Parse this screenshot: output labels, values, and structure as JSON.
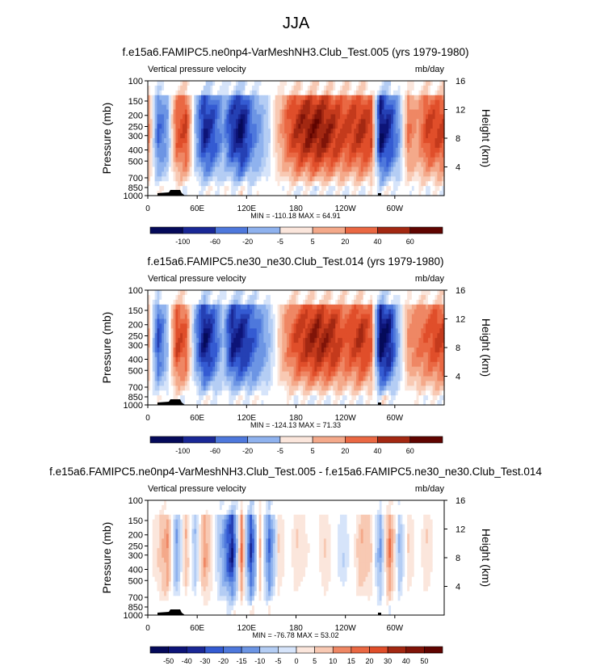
{
  "page_title": "JJA",
  "chart_data": [
    {
      "type": "heatmap",
      "title": "f.e15a6.FAMIPC5.ne0np4-VarMeshNH3.Club_Test.005 (yrs 1979-1980)",
      "left_label": "Vertical pressure velocity",
      "units": "mb/day",
      "ylabel": "Pressure (mb)",
      "ylabel_right": "Height (km)",
      "pressure_levels": [
        100,
        150,
        200,
        250,
        300,
        400,
        500,
        700,
        850,
        1000
      ],
      "height_ticks": [
        4,
        8,
        12,
        16
      ],
      "x_ticks": [
        "0",
        "60E",
        "120E",
        "180",
        "120W",
        "60W"
      ],
      "stats_text": "MIN = -110.18  MAX = 64.91",
      "min": -110.18,
      "max": 64.91,
      "colorbar_ticks": [
        "-100",
        "-60",
        "-20",
        "-5",
        "5",
        "20",
        "40",
        "60"
      ],
      "profile": [
        0.3,
        -0.5,
        -0.3,
        0.5,
        0.6,
        -0.2,
        -0.8,
        -0.6,
        -0.3,
        -0.7,
        -0.9,
        -0.5,
        -0.3,
        -0.1,
        0.2,
        0.5,
        0.7,
        0.8,
        0.85,
        0.8,
        0.7,
        0.6,
        0.65,
        0.7,
        0.6,
        -0.9,
        -0.7,
        -0.3,
        0.4,
        0.3,
        0.6,
        0.6
      ]
    },
    {
      "type": "heatmap",
      "title": "f.e15a6.FAMIPC5.ne30_ne30.Club_Test.014 (yrs 1979-1980)",
      "left_label": "Vertical pressure velocity",
      "units": "mb/day",
      "ylabel": "Pressure (mb)",
      "ylabel_right": "Height (km)",
      "pressure_levels": [
        100,
        150,
        200,
        250,
        300,
        400,
        500,
        700,
        850,
        1000
      ],
      "height_ticks": [
        4,
        8,
        12,
        16
      ],
      "x_ticks": [
        "0",
        "60E",
        "120E",
        "180",
        "120W",
        "60W"
      ],
      "stats_text": "MIN = -124.13  MAX =  71.33",
      "min": -124.13,
      "max": 71.33,
      "colorbar_ticks": [
        "-100",
        "-60",
        "-20",
        "-5",
        "5",
        "20",
        "40",
        "60"
      ],
      "profile": [
        0.2,
        -0.6,
        -0.2,
        0.6,
        0.5,
        -0.3,
        -0.9,
        -0.6,
        -0.2,
        -0.8,
        -0.8,
        -0.6,
        -0.4,
        -0.2,
        0.1,
        0.4,
        0.6,
        0.7,
        0.8,
        0.75,
        0.7,
        0.5,
        0.6,
        0.7,
        0.5,
        -1.0,
        -0.8,
        -0.2,
        0.3,
        0.4,
        0.5,
        0.6
      ]
    },
    {
      "type": "heatmap",
      "title": "f.e15a6.FAMIPC5.ne0np4-VarMeshNH3.Club_Test.005 - f.e15a6.FAMIPC5.ne30_ne30.Club_Test.014",
      "left_label": "Vertical pressure velocity",
      "units": "mb/day",
      "ylabel": "Pressure (mb)",
      "ylabel_right": "Height (km)",
      "pressure_levels": [
        100,
        150,
        200,
        250,
        300,
        400,
        500,
        700,
        850,
        1000
      ],
      "height_ticks": [
        4,
        8,
        12,
        16
      ],
      "x_ticks": [
        "0",
        "60E",
        "120E",
        "180",
        "120W",
        "60W"
      ],
      "stats_text": "MIN = -76.78  MAX =  53.02",
      "min": -76.78,
      "max": 53.02,
      "colorbar_ticks": [
        "-50",
        "-40",
        "-30",
        "-20",
        "-15",
        "-10",
        "-5",
        "0",
        "5",
        "10",
        "15",
        "20",
        "30",
        "40",
        "50"
      ],
      "profile": [
        0.0,
        0.1,
        0.3,
        -0.3,
        0.2,
        -0.2,
        0.3,
        0.0,
        -0.3,
        -0.8,
        0.4,
        -0.7,
        0.2,
        -0.5,
        0.1,
        0.0,
        0.1,
        0.05,
        0.0,
        0.1,
        0.0,
        -0.1,
        0.0,
        0.2,
        0.1,
        -0.3,
        0.4,
        -0.2,
        0.1,
        0.0,
        0.1,
        0.0
      ]
    }
  ],
  "colors": {
    "negative": [
      "#d6e4fa",
      "#b4cdf4",
      "#8fb2ee",
      "#6c95e4",
      "#4e78dc",
      "#345bd2",
      "#2540b4",
      "#1a2896",
      "#0d1478",
      "#050a5a"
    ],
    "positive": [
      "#fbe6dc",
      "#f8c9b3",
      "#f4a98a",
      "#ef8764",
      "#ea6843",
      "#e04e2a",
      "#c43a1c",
      "#a32812",
      "#801408",
      "#600400"
    ]
  }
}
